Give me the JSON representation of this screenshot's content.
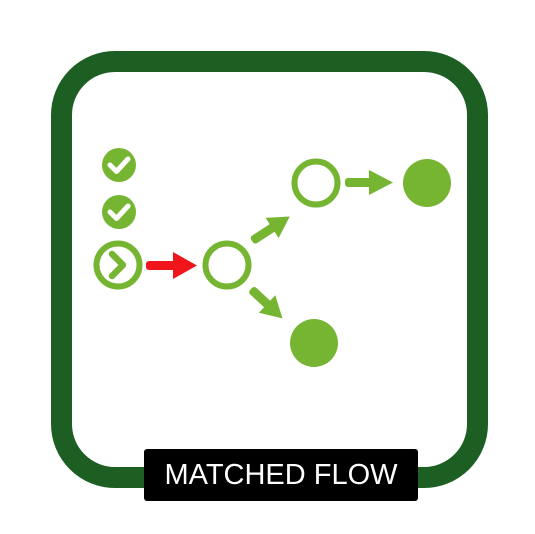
{
  "badge": {
    "label": "MATCHED FLOW"
  },
  "icons": {
    "completed_step_1": "check-circle-icon",
    "completed_step_2": "check-circle-icon",
    "current_step": "chevron-right-circle-icon",
    "branch_node": "hollow-circle-icon",
    "upper_node": "hollow-circle-icon",
    "upper_end": "filled-circle-icon",
    "lower_end": "filled-circle-icon",
    "matched_arrow": "arrow-right-icon"
  },
  "colors": {
    "frame": "#1d5e23",
    "node": "#76b531",
    "active_arrow": "#f0141b",
    "label_bg": "#000000",
    "label_text": "#ffffff"
  }
}
